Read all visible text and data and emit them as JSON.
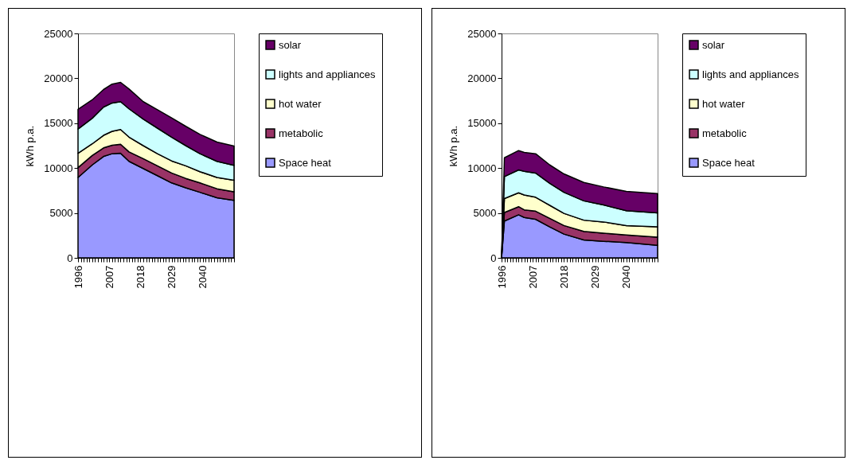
{
  "chart_data": [
    {
      "type": "area",
      "ylabel": "kWh p.a.",
      "stacked": true,
      "legend": "right",
      "xlim": [
        1996,
        2051
      ],
      "ylim": [
        0,
        25000
      ],
      "yticks": [
        0,
        5000,
        10000,
        15000,
        20000,
        25000
      ],
      "xticks": [
        1996,
        {
          "value": 1997,
          "label": null
        },
        {
          "value": 1998,
          "label": null
        },
        {
          "value": 1999,
          "label": null
        },
        {
          "value": 2000,
          "label": null
        },
        {
          "value": 2001,
          "label": null
        },
        {
          "value": 2002,
          "label": null
        },
        {
          "value": 2003,
          "label": null
        },
        {
          "value": 2004,
          "label": null
        },
        {
          "value": 2005,
          "label": null
        },
        {
          "value": 2006,
          "label": null
        },
        2007,
        {
          "value": 2008,
          "label": null
        },
        {
          "value": 2009,
          "label": null
        },
        {
          "value": 2010,
          "label": null
        },
        {
          "value": 2011,
          "label": null
        },
        {
          "value": 2012,
          "label": null
        },
        {
          "value": 2013,
          "label": null
        },
        {
          "value": 2014,
          "label": null
        },
        {
          "value": 2015,
          "label": null
        },
        {
          "value": 2016,
          "label": null
        },
        {
          "value": 2017,
          "label": null
        },
        2018,
        {
          "value": 2019,
          "label": null
        },
        {
          "value": 2020,
          "label": null
        },
        {
          "value": 2021,
          "label": null
        },
        {
          "value": 2022,
          "label": null
        },
        {
          "value": 2023,
          "label": null
        },
        {
          "value": 2024,
          "label": null
        },
        {
          "value": 2025,
          "label": null
        },
        {
          "value": 2026,
          "label": null
        },
        {
          "value": 2027,
          "label": null
        },
        {
          "value": 2028,
          "label": null
        },
        2029,
        {
          "value": 2030,
          "label": null
        },
        {
          "value": 2031,
          "label": null
        },
        {
          "value": 2032,
          "label": null
        },
        {
          "value": 2033,
          "label": null
        },
        {
          "value": 2034,
          "label": null
        },
        {
          "value": 2035,
          "label": null
        },
        {
          "value": 2036,
          "label": null
        },
        {
          "value": 2037,
          "label": null
        },
        {
          "value": 2038,
          "label": null
        },
        {
          "value": 2039,
          "label": null
        },
        2040,
        {
          "value": 2041,
          "label": null
        },
        {
          "value": 2042,
          "label": null
        },
        {
          "value": 2043,
          "label": null
        },
        {
          "value": 2044,
          "label": null
        },
        {
          "value": 2045,
          "label": null
        },
        {
          "value": 2046,
          "label": null
        },
        {
          "value": 2047,
          "label": null
        },
        {
          "value": 2048,
          "label": null
        },
        {
          "value": 2049,
          "label": null
        },
        {
          "value": 2050,
          "label": null
        },
        {
          "value": 2051,
          "label": null
        }
      ],
      "x": [
        1996,
        2001,
        2005,
        2008,
        2011,
        2014,
        2019,
        2024,
        2029,
        2034,
        2039,
        2045,
        2051
      ],
      "series": [
        {
          "name": "Space heat",
          "color": "#9999ff",
          "values": [
            8950,
            10350,
            11300,
            11600,
            11650,
            10750,
            9950,
            9150,
            8350,
            7800,
            7300,
            6700,
            6400
          ]
        },
        {
          "name": "metabolic",
          "color": "#993366",
          "values": [
            1100,
            1050,
            950,
            950,
            1000,
            1050,
            1100,
            1100,
            1100,
            1050,
            1050,
            1000,
            950
          ]
        },
        {
          "name": "hot water",
          "color": "#ffffcc",
          "values": [
            1600,
            1300,
            1400,
            1550,
            1650,
            1650,
            1450,
            1350,
            1350,
            1400,
            1250,
            1250,
            1300
          ]
        },
        {
          "name": "lights and appliances",
          "color": "#ccffff",
          "values": [
            2700,
            2850,
            3150,
            3150,
            3100,
            3150,
            2950,
            2850,
            2650,
            2250,
            2000,
            1800,
            1650
          ]
        },
        {
          "name": "solar",
          "color": "#660066",
          "values": [
            2200,
            2050,
            1950,
            2100,
            2150,
            2200,
            1950,
            2050,
            2150,
            2150,
            2150,
            2150,
            2150
          ]
        }
      ]
    },
    {
      "type": "area",
      "ylabel": "kWh p.a.",
      "stacked": true,
      "legend": "right",
      "xlim": [
        1996,
        2051
      ],
      "ylim": [
        0,
        25000
      ],
      "yticks": [
        0,
        5000,
        10000,
        15000,
        20000,
        25000
      ],
      "xticks": [
        1996,
        {
          "value": 1997,
          "label": null
        },
        {
          "value": 1998,
          "label": null
        },
        {
          "value": 1999,
          "label": null
        },
        {
          "value": 2000,
          "label": null
        },
        {
          "value": 2001,
          "label": null
        },
        {
          "value": 2002,
          "label": null
        },
        {
          "value": 2003,
          "label": null
        },
        {
          "value": 2004,
          "label": null
        },
        {
          "value": 2005,
          "label": null
        },
        {
          "value": 2006,
          "label": null
        },
        2007,
        {
          "value": 2008,
          "label": null
        },
        {
          "value": 2009,
          "label": null
        },
        {
          "value": 2010,
          "label": null
        },
        {
          "value": 2011,
          "label": null
        },
        {
          "value": 2012,
          "label": null
        },
        {
          "value": 2013,
          "label": null
        },
        {
          "value": 2014,
          "label": null
        },
        {
          "value": 2015,
          "label": null
        },
        {
          "value": 2016,
          "label": null
        },
        {
          "value": 2017,
          "label": null
        },
        2018,
        {
          "value": 2019,
          "label": null
        },
        {
          "value": 2020,
          "label": null
        },
        {
          "value": 2021,
          "label": null
        },
        {
          "value": 2022,
          "label": null
        },
        {
          "value": 2023,
          "label": null
        },
        {
          "value": 2024,
          "label": null
        },
        {
          "value": 2025,
          "label": null
        },
        {
          "value": 2026,
          "label": null
        },
        {
          "value": 2027,
          "label": null
        },
        {
          "value": 2028,
          "label": null
        },
        2029,
        {
          "value": 2030,
          "label": null
        },
        {
          "value": 2031,
          "label": null
        },
        {
          "value": 2032,
          "label": null
        },
        {
          "value": 2033,
          "label": null
        },
        {
          "value": 2034,
          "label": null
        },
        {
          "value": 2035,
          "label": null
        },
        {
          "value": 2036,
          "label": null
        },
        {
          "value": 2037,
          "label": null
        },
        {
          "value": 2038,
          "label": null
        },
        {
          "value": 2039,
          "label": null
        },
        2040,
        {
          "value": 2041,
          "label": null
        },
        {
          "value": 2042,
          "label": null
        },
        {
          "value": 2043,
          "label": null
        },
        {
          "value": 2044,
          "label": null
        },
        {
          "value": 2045,
          "label": null
        },
        {
          "value": 2046,
          "label": null
        },
        {
          "value": 2047,
          "label": null
        },
        {
          "value": 2048,
          "label": null
        },
        {
          "value": 2049,
          "label": null
        },
        {
          "value": 2050,
          "label": null
        },
        {
          "value": 2051,
          "label": null
        }
      ],
      "x": [
        1996,
        1997,
        2002,
        2004,
        2008,
        2013,
        2018,
        2025,
        2032,
        2040,
        2051
      ],
      "series": [
        {
          "name": "Space heat",
          "color": "#9999ff",
          "values": [
            0,
            4100,
            4800,
            4500,
            4300,
            3450,
            2650,
            2000,
            1850,
            1700,
            1400
          ]
        },
        {
          "name": "metabolic",
          "color": "#993366",
          "values": [
            0,
            950,
            900,
            850,
            900,
            950,
            950,
            950,
            900,
            850,
            900
          ]
        },
        {
          "name": "hot water",
          "color": "#ffffcc",
          "values": [
            0,
            1550,
            1550,
            1650,
            1550,
            1450,
            1350,
            1250,
            1250,
            1050,
            1150
          ]
        },
        {
          "name": "lights and appliances",
          "color": "#ccffff",
          "values": [
            0,
            2450,
            2550,
            2650,
            2700,
            2450,
            2350,
            2150,
            1900,
            1650,
            1550
          ]
        },
        {
          "name": "solar",
          "color": "#660066",
          "values": [
            0,
            2100,
            2150,
            2100,
            2150,
            2050,
            2050,
            2050,
            2000,
            2150,
            2150
          ]
        }
      ]
    }
  ]
}
